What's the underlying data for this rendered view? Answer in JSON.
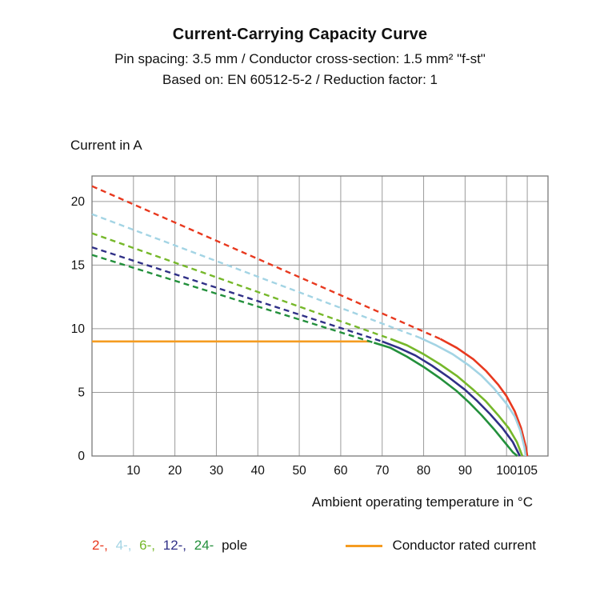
{
  "header": {
    "title": "Current-Carrying Capacity Curve",
    "subtitle1": "Pin spacing: 3.5 mm / Conductor cross-section: 1.5 mm² \"f-st\"",
    "subtitle2": "Based on: EN 60512-5-2 / Reduction factor: 1"
  },
  "axes": {
    "y_title": "Current in A",
    "x_title": "Ambient operating temperature in °C"
  },
  "legend": {
    "poles": [
      {
        "label": "2-,",
        "color": "#e8391f"
      },
      {
        "label": "4-,",
        "color": "#a3d4e4"
      },
      {
        "label": "6-,",
        "color": "#76b82a"
      },
      {
        "label": "12-,",
        "color": "#303087"
      },
      {
        "label": "24-",
        "color": "#23903c"
      }
    ],
    "poles_suffix": "pole",
    "rated_label": "Conductor rated current",
    "rated_color": "#f59c21"
  },
  "chart_data": {
    "type": "line",
    "title": "Current-Carrying Capacity Curve",
    "xlabel": "Ambient operating temperature in °C",
    "ylabel": "Current in A",
    "xlim": [
      0,
      110
    ],
    "ylim": [
      0,
      22
    ],
    "xticks": [
      10,
      20,
      30,
      40,
      50,
      60,
      70,
      80,
      90,
      100,
      105
    ],
    "yticks": [
      0,
      5,
      10,
      15,
      20
    ],
    "grid": true,
    "grid_color": "#9b9b9b",
    "border_color": "#7a7a7a",
    "rated_current": {
      "label": "Conductor rated current",
      "value": 9,
      "x_end": 67,
      "color": "#f59c21"
    },
    "series": [
      {
        "name": "2-pole",
        "color": "#e8391f",
        "dashed": [
          [
            0,
            21.2
          ],
          [
            84,
            9.2
          ]
        ],
        "solid": [
          [
            84,
            9.2
          ],
          [
            88,
            8.5
          ],
          [
            92,
            7.6
          ],
          [
            95,
            6.7
          ],
          [
            98,
            5.6
          ],
          [
            100,
            4.7
          ],
          [
            102,
            3.5
          ],
          [
            103.5,
            2.2
          ],
          [
            104.6,
            0.8
          ],
          [
            105,
            0
          ]
        ]
      },
      {
        "name": "4-pole",
        "color": "#a3d4e4",
        "dashed": [
          [
            0,
            19.0
          ],
          [
            79,
            9.3
          ]
        ],
        "solid": [
          [
            79,
            9.3
          ],
          [
            83,
            8.7
          ],
          [
            87,
            8.0
          ],
          [
            91,
            7.1
          ],
          [
            94,
            6.3
          ],
          [
            97,
            5.3
          ],
          [
            100,
            4.1
          ],
          [
            102,
            3.1
          ],
          [
            103.3,
            2.0
          ],
          [
            104.3,
            0.7
          ],
          [
            104.6,
            0
          ]
        ]
      },
      {
        "name": "6-pole",
        "color": "#76b82a",
        "dashed": [
          [
            0,
            17.5
          ],
          [
            72,
            9.2
          ]
        ],
        "solid": [
          [
            72,
            9.2
          ],
          [
            76,
            8.7
          ],
          [
            80,
            8.0
          ],
          [
            84,
            7.2
          ],
          [
            88,
            6.3
          ],
          [
            92,
            5.2
          ],
          [
            95,
            4.3
          ],
          [
            98,
            3.2
          ],
          [
            100.5,
            2.2
          ],
          [
            102.5,
            1.1
          ],
          [
            103.8,
            0
          ]
        ]
      },
      {
        "name": "12-pole",
        "color": "#303087",
        "dashed": [
          [
            0,
            16.4
          ],
          [
            70,
            9.0
          ]
        ],
        "solid": [
          [
            70,
            9.0
          ],
          [
            74,
            8.5
          ],
          [
            78,
            7.9
          ],
          [
            82,
            7.1
          ],
          [
            86,
            6.2
          ],
          [
            90,
            5.2
          ],
          [
            93,
            4.3
          ],
          [
            96,
            3.3
          ],
          [
            99,
            2.2
          ],
          [
            101.5,
            1.1
          ],
          [
            103.2,
            0
          ]
        ]
      },
      {
        "name": "24-pole",
        "color": "#23903c",
        "dashed": [
          [
            0,
            15.8
          ],
          [
            68,
            8.9
          ]
        ],
        "solid": [
          [
            68,
            8.9
          ],
          [
            72,
            8.5
          ],
          [
            76,
            7.8
          ],
          [
            80,
            7.0
          ],
          [
            84,
            6.1
          ],
          [
            88,
            5.1
          ],
          [
            91,
            4.2
          ],
          [
            94,
            3.2
          ],
          [
            97,
            2.1
          ],
          [
            99.5,
            1.1
          ],
          [
            101.5,
            0.3
          ],
          [
            102.6,
            0
          ]
        ]
      }
    ]
  }
}
